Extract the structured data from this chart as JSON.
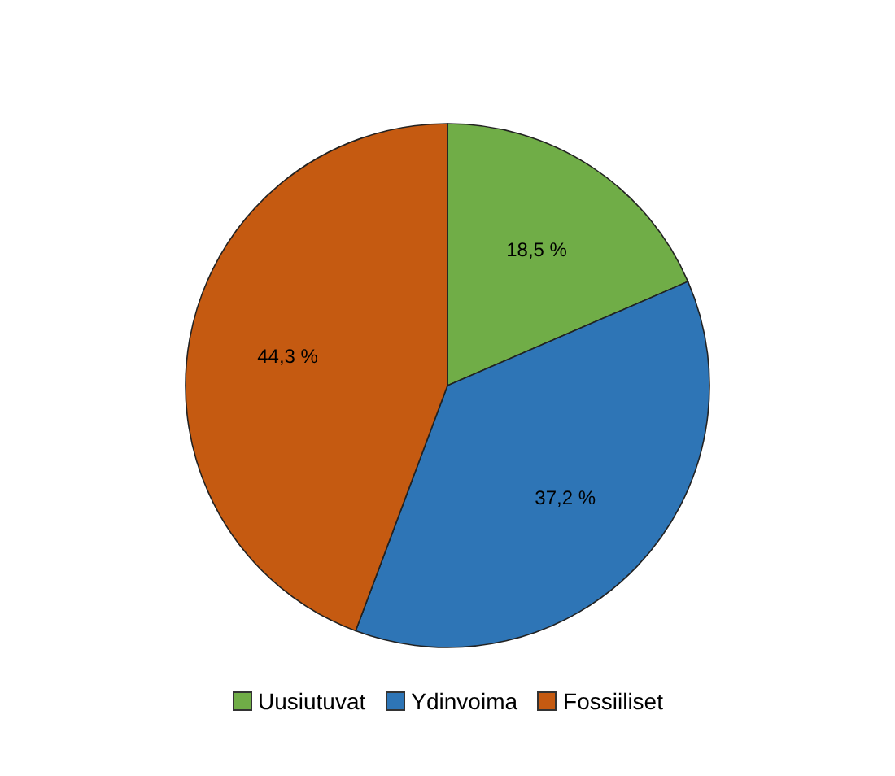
{
  "chart_data": {
    "type": "pie",
    "categories": [
      "Uusiutuvat",
      "Ydinvoima",
      "Fossiiliset"
    ],
    "values": [
      18.5,
      37.2,
      44.3
    ],
    "colors": [
      "#70ad47",
      "#2e75b6",
      "#c55a11"
    ],
    "value_labels": [
      "18,5 %",
      "37,2 %",
      "44,3 %"
    ],
    "legend": "bottom"
  }
}
